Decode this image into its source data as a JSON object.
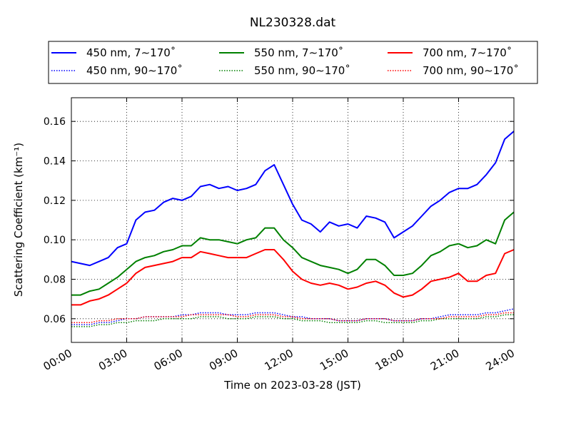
{
  "chart_data": {
    "type": "line",
    "title": "NL230328.dat",
    "xlabel": "Time on 2023-03-28 (JST)",
    "ylabel": "Scattering Coefficient (km⁻¹)",
    "xlim": [
      0,
      24
    ],
    "ylim": [
      0.048,
      0.172
    ],
    "x_unit": "hours (JST)",
    "xticks": [
      0,
      3,
      6,
      9,
      12,
      15,
      18,
      21,
      24
    ],
    "xtick_labels": [
      "00:00",
      "03:00",
      "06:00",
      "09:00",
      "12:00",
      "15:00",
      "18:00",
      "21:00",
      "24:00"
    ],
    "yticks": [
      0.06,
      0.08,
      0.1,
      0.12,
      0.14,
      0.16
    ],
    "ytick_labels": [
      "0.06",
      "0.08",
      "0.10",
      "0.12",
      "0.14",
      "0.16"
    ],
    "grid": true,
    "legend_position": "top, above plot, 3 columns",
    "x": [
      0,
      0.5,
      1,
      1.5,
      2,
      2.5,
      3,
      3.5,
      4,
      4.5,
      5,
      5.5,
      6,
      6.5,
      7,
      7.5,
      8,
      8.5,
      9,
      9.5,
      10,
      10.5,
      11,
      11.5,
      12,
      12.5,
      13,
      13.5,
      14,
      14.5,
      15,
      15.5,
      16,
      16.5,
      17,
      17.5,
      18,
      18.5,
      19,
      19.5,
      20,
      20.5,
      21,
      21.5,
      22,
      22.5,
      23,
      23.5,
      24
    ],
    "series": [
      {
        "name": "450 nm, 7∼170˚",
        "color": "#0000ff",
        "style": "solid",
        "values": [
          0.089,
          0.088,
          0.087,
          0.089,
          0.091,
          0.096,
          0.098,
          0.11,
          0.114,
          0.115,
          0.119,
          0.121,
          0.12,
          0.122,
          0.127,
          0.128,
          0.126,
          0.127,
          0.125,
          0.126,
          0.128,
          0.135,
          0.138,
          0.128,
          0.118,
          0.11,
          0.108,
          0.104,
          0.109,
          0.107,
          0.108,
          0.106,
          0.112,
          0.111,
          0.109,
          0.101,
          0.104,
          0.107,
          0.112,
          0.117,
          0.12,
          0.124,
          0.126,
          0.126,
          0.128,
          0.133,
          0.139,
          0.151,
          0.155
        ]
      },
      {
        "name": "550 nm, 7∼170˚",
        "color": "#008000",
        "style": "solid",
        "values": [
          0.072,
          0.072,
          0.074,
          0.075,
          0.078,
          0.081,
          0.085,
          0.089,
          0.091,
          0.092,
          0.094,
          0.095,
          0.097,
          0.097,
          0.101,
          0.1,
          0.1,
          0.099,
          0.098,
          0.1,
          0.101,
          0.106,
          0.106,
          0.1,
          0.096,
          0.091,
          0.089,
          0.087,
          0.086,
          0.085,
          0.083,
          0.085,
          0.09,
          0.09,
          0.087,
          0.082,
          0.082,
          0.083,
          0.087,
          0.092,
          0.094,
          0.097,
          0.098,
          0.096,
          0.097,
          0.1,
          0.098,
          0.11,
          0.114
        ]
      },
      {
        "name": "700 nm, 7∼170˚",
        "color": "#ff0000",
        "style": "solid",
        "values": [
          0.067,
          0.067,
          0.069,
          0.07,
          0.072,
          0.075,
          0.078,
          0.083,
          0.086,
          0.087,
          0.088,
          0.089,
          0.091,
          0.091,
          0.094,
          0.093,
          0.092,
          0.091,
          0.091,
          0.091,
          0.093,
          0.095,
          0.095,
          0.09,
          0.084,
          0.08,
          0.078,
          0.077,
          0.078,
          0.077,
          0.075,
          0.076,
          0.078,
          0.079,
          0.077,
          0.073,
          0.071,
          0.072,
          0.075,
          0.079,
          0.08,
          0.081,
          0.083,
          0.079,
          0.079,
          0.082,
          0.083,
          0.093,
          0.095
        ]
      },
      {
        "name": "450 nm, 90∼170˚",
        "color": "#0000ff",
        "style": "dotted",
        "values": [
          0.057,
          0.057,
          0.057,
          0.058,
          0.058,
          0.059,
          0.06,
          0.06,
          0.061,
          0.061,
          0.061,
          0.061,
          0.062,
          0.062,
          0.063,
          0.063,
          0.063,
          0.062,
          0.062,
          0.062,
          0.063,
          0.063,
          0.063,
          0.062,
          0.061,
          0.061,
          0.06,
          0.06,
          0.06,
          0.059,
          0.059,
          0.059,
          0.06,
          0.06,
          0.06,
          0.059,
          0.059,
          0.059,
          0.06,
          0.06,
          0.061,
          0.062,
          0.062,
          0.062,
          0.062,
          0.063,
          0.063,
          0.064,
          0.065
        ]
      },
      {
        "name": "550 nm, 90∼170˚",
        "color": "#008000",
        "style": "dotted",
        "values": [
          0.056,
          0.056,
          0.056,
          0.057,
          0.057,
          0.058,
          0.058,
          0.059,
          0.059,
          0.059,
          0.06,
          0.06,
          0.06,
          0.06,
          0.061,
          0.061,
          0.061,
          0.06,
          0.06,
          0.06,
          0.061,
          0.061,
          0.061,
          0.06,
          0.06,
          0.059,
          0.059,
          0.059,
          0.058,
          0.058,
          0.058,
          0.058,
          0.059,
          0.059,
          0.058,
          0.058,
          0.058,
          0.058,
          0.059,
          0.059,
          0.06,
          0.06,
          0.06,
          0.06,
          0.06,
          0.061,
          0.061,
          0.062,
          0.062
        ]
      },
      {
        "name": "700 nm, 90∼170˚",
        "color": "#ff0000",
        "style": "dotted",
        "values": [
          0.058,
          0.058,
          0.058,
          0.059,
          0.059,
          0.06,
          0.06,
          0.06,
          0.061,
          0.061,
          0.061,
          0.061,
          0.061,
          0.062,
          0.062,
          0.062,
          0.062,
          0.062,
          0.061,
          0.061,
          0.062,
          0.062,
          0.062,
          0.061,
          0.061,
          0.06,
          0.06,
          0.06,
          0.06,
          0.059,
          0.059,
          0.059,
          0.06,
          0.06,
          0.06,
          0.059,
          0.059,
          0.059,
          0.06,
          0.06,
          0.06,
          0.061,
          0.061,
          0.061,
          0.061,
          0.062,
          0.062,
          0.063,
          0.063
        ]
      }
    ],
    "legend_order": [
      0,
      1,
      2,
      3,
      4,
      5
    ]
  }
}
